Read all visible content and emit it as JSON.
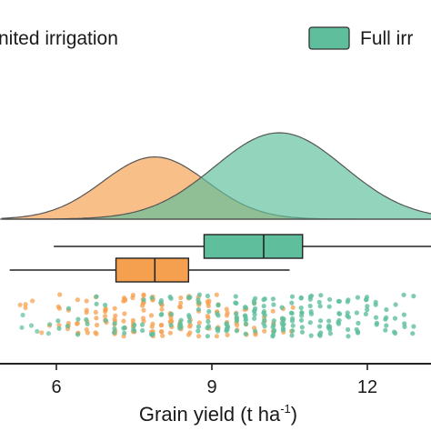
{
  "chart_data": {
    "type": "raincloud",
    "xlabel": "Grain yield (t ha",
    "xlabel_sup": "-1",
    "xlabel_close": ")",
    "xticks": [
      6,
      9,
      12
    ],
    "xlim": [
      4.95,
      13.25
    ],
    "grid": false,
    "legend": {
      "placement": "top",
      "entries": [
        {
          "label": "Limited irrigation",
          "visible_text": "nited irrigation",
          "color": "#f5a04f"
        },
        {
          "label": "Full irrigation",
          "visible_text": "Full irr",
          "color": "#5fbf9c"
        }
      ]
    },
    "series": [
      {
        "name": "Limited irrigation",
        "color": "#f5a04f",
        "density": {
          "peak_x": 7.9,
          "sd": 1.0,
          "relative_height": 0.72
        },
        "box": {
          "whisker_low": 5.1,
          "q1": 7.15,
          "median": 7.9,
          "q3": 8.55,
          "whisker_high": 10.5
        },
        "points_range": [
          5.3,
          10.6
        ]
      },
      {
        "name": "Full irrigation",
        "color": "#5fbf9c",
        "density": {
          "peak_x": 10.3,
          "sd": 1.25,
          "relative_height": 1.0
        },
        "box": {
          "whisker_low": 5.95,
          "q1": 8.85,
          "median": 10.0,
          "q3": 10.75,
          "whisker_high": 13.25
        },
        "points_range": [
          5.3,
          13.2
        ]
      }
    ]
  }
}
